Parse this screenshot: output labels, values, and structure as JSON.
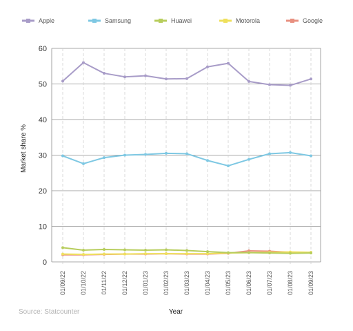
{
  "chart_data": {
    "type": "line",
    "xlabel": "Year",
    "ylabel": "Market share %",
    "ylim": [
      0,
      60
    ],
    "y_ticks": [
      0,
      10,
      20,
      30,
      40,
      50,
      60
    ],
    "categories": [
      "01/09/22",
      "01/10/22",
      "01/11/22",
      "01/12/22",
      "01/01/23",
      "01/02/23",
      "01/03/23",
      "01/04/23",
      "01/05/23",
      "01/06/23",
      "01/07/23",
      "01/08/23",
      "01/09/23"
    ],
    "legend_position": "top",
    "grid": {
      "horizontal": "solid",
      "vertical": "dashed"
    },
    "series": [
      {
        "name": "Apple",
        "color": "#a89cc8",
        "values": [
          50.8,
          56.0,
          53.0,
          52.0,
          52.3,
          51.4,
          51.5,
          54.8,
          55.8,
          50.7,
          49.8,
          49.6,
          51.4
        ]
      },
      {
        "name": "Samsung",
        "color": "#7ec8e3",
        "values": [
          29.8,
          27.6,
          29.3,
          30.0,
          30.2,
          30.5,
          30.4,
          28.5,
          27.0,
          28.8,
          30.4,
          30.7,
          29.8
        ]
      },
      {
        "name": "Huawei",
        "color": "#b7cd5c",
        "values": [
          4.0,
          3.3,
          3.5,
          3.4,
          3.3,
          3.4,
          3.2,
          2.9,
          2.6,
          2.6,
          2.5,
          2.4,
          2.5
        ]
      },
      {
        "name": "Motorola",
        "color": "#efe05c",
        "values": [
          2.2,
          2.1,
          2.2,
          2.2,
          2.3,
          2.3,
          2.3,
          2.3,
          2.5,
          2.6,
          2.7,
          2.8,
          2.7
        ]
      },
      {
        "name": "Google",
        "color": "#e89080",
        "values": [
          2.0,
          2.0,
          2.1,
          2.2,
          2.2,
          2.3,
          2.2,
          2.2,
          2.4,
          3.1,
          3.0,
          2.7,
          2.6
        ]
      }
    ],
    "source": "Source: Statcounter"
  }
}
